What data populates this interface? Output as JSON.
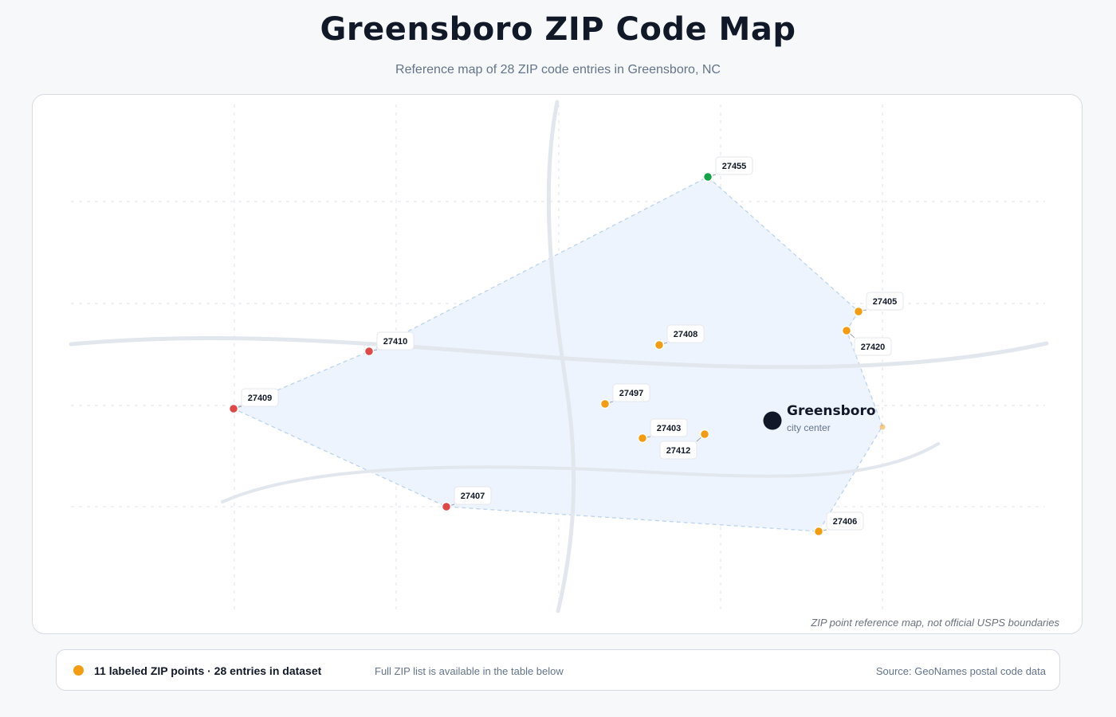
{
  "header": {
    "title": "Greensboro ZIP Code Map",
    "subtitle": "Reference map of 28 ZIP code entries in Greensboro, NC"
  },
  "map": {
    "city": {
      "name": "Greensboro",
      "sub": "city center"
    },
    "disclaimer": "ZIP point reference map, not official USPS boundaries",
    "colors": {
      "region_fill": "#eef4fd",
      "region_stroke": "#bcd3ef",
      "road": "#e2e7ee",
      "grid": "#dfe3e8",
      "green": "#16a34a",
      "orange": "#f39c0f",
      "red": "#e04848",
      "center": "#111827"
    },
    "zip_points": [
      {
        "zip": "27455",
        "color": "green"
      },
      {
        "zip": "27405",
        "color": "orange"
      },
      {
        "zip": "27420",
        "color": "orange"
      },
      {
        "zip": "27408",
        "color": "orange"
      },
      {
        "zip": "27410",
        "color": "red"
      },
      {
        "zip": "27497",
        "color": "orange"
      },
      {
        "zip": "27409",
        "color": "red"
      },
      {
        "zip": "27403",
        "color": "orange"
      },
      {
        "zip": "27412",
        "color": "orange"
      },
      {
        "zip": "27407",
        "color": "red"
      },
      {
        "zip": "27406",
        "color": "orange"
      }
    ]
  },
  "legend": {
    "dot_color": "#f39c0f",
    "main": "11 labeled ZIP points · 28 entries in dataset",
    "note": "Full ZIP list is available in the table below",
    "source": "Source: GeoNames postal code data"
  }
}
